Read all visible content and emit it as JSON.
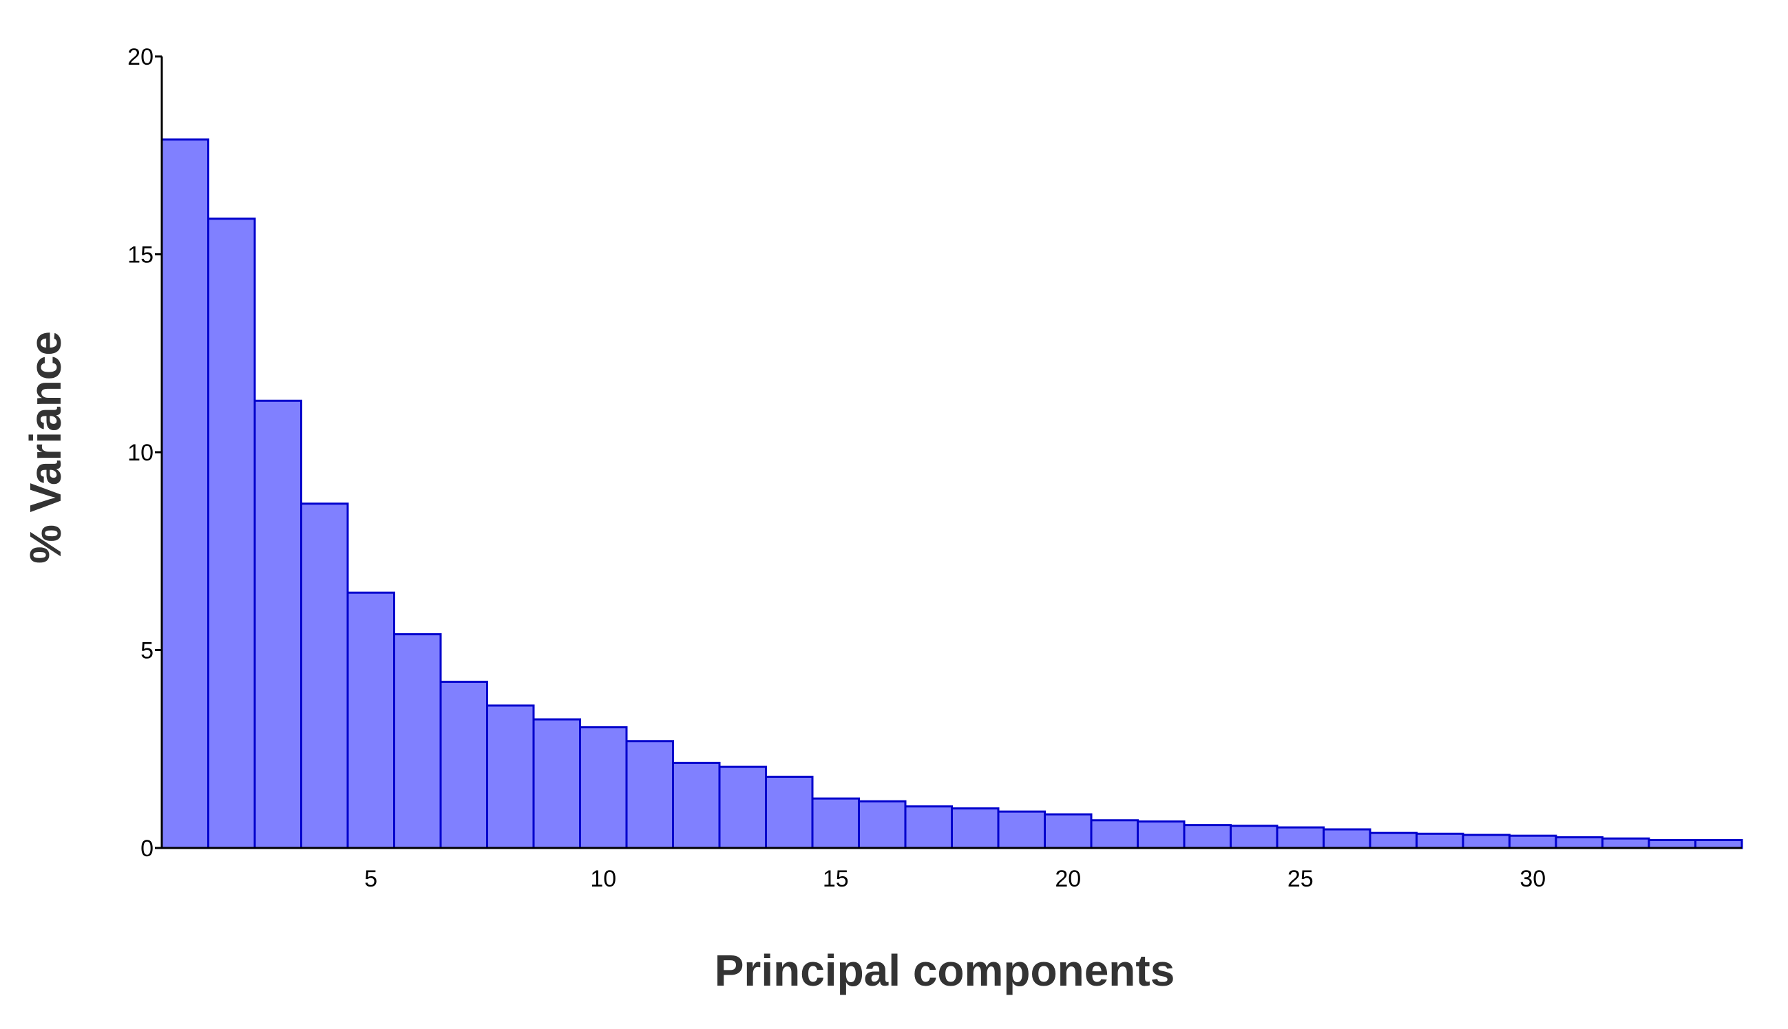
{
  "colors": {
    "bar_fill": "#8080ff",
    "bar_stroke": "#0000cc",
    "axis": "#000000",
    "title": "#333333"
  },
  "chart_data": {
    "type": "bar",
    "title": "",
    "xlabel": "Principal components",
    "ylabel": "% Variance",
    "ylim": [
      0,
      20
    ],
    "y_ticks": [
      0,
      5,
      10,
      15,
      20
    ],
    "x_ticks": [
      5,
      10,
      15,
      20,
      25,
      30
    ],
    "grid": false,
    "legend": "none",
    "categories": [
      1,
      2,
      3,
      4,
      5,
      6,
      7,
      8,
      9,
      10,
      11,
      12,
      13,
      14,
      15,
      16,
      17,
      18,
      19,
      20,
      21,
      22,
      23,
      24,
      25,
      26,
      27,
      28,
      29,
      30,
      31,
      32,
      33,
      34
    ],
    "values": [
      17.9,
      15.9,
      11.3,
      8.7,
      6.45,
      5.4,
      4.2,
      3.6,
      3.25,
      3.05,
      2.7,
      2.15,
      2.05,
      1.8,
      1.25,
      1.18,
      1.05,
      1.0,
      0.92,
      0.85,
      0.7,
      0.67,
      0.58,
      0.56,
      0.52,
      0.47,
      0.38,
      0.36,
      0.33,
      0.31,
      0.27,
      0.24,
      0.2,
      0.2
    ]
  }
}
